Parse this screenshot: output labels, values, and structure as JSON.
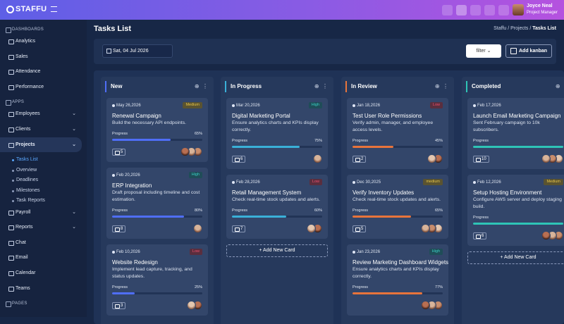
{
  "header": {
    "logo": "STAFFU",
    "user_name": "Joyce Neal",
    "user_role": "Project Manager"
  },
  "sidebar": {
    "sections": [
      {
        "title": "DASHBOARDS",
        "items": [
          {
            "label": "Analytics"
          },
          {
            "label": "Sales"
          },
          {
            "label": "Attendance"
          },
          {
            "label": "Performance"
          }
        ]
      },
      {
        "title": "APPS",
        "items": [
          {
            "label": "Employees",
            "expandable": true
          },
          {
            "label": "Clients",
            "expandable": true
          },
          {
            "label": "Projects",
            "expandable": true,
            "active": true,
            "children": [
              "Tasks List",
              "Overview",
              "Deadlines",
              "Milestones",
              "Task Reports"
            ]
          },
          {
            "label": "Payroll",
            "expandable": true
          },
          {
            "label": "Reports",
            "expandable": true
          },
          {
            "label": "Chat"
          },
          {
            "label": "Email"
          },
          {
            "label": "Calendar"
          },
          {
            "label": "Teams"
          }
        ]
      },
      {
        "title": "PAGES",
        "items": []
      }
    ]
  },
  "page": {
    "title": "Tasks List",
    "breadcrumb": [
      "Staffu",
      "Projects",
      "Tasks List"
    ]
  },
  "toolbar": {
    "date": "Sat, 04 Jul 2026",
    "filter": "filter",
    "add": "Add kanban"
  },
  "board": {
    "columns": [
      {
        "name": "New",
        "color": "#4f6ef7",
        "cards": [
          {
            "date": "May 26,2026",
            "priority": "Medium",
            "title": "Renewal Campaign",
            "description": "Build the necessary API endpoints.",
            "progress_text": "Progress",
            "progress": 65,
            "progress_label": "65%",
            "comments": 5
          },
          {
            "date": "Feb 20,2026",
            "priority": "High",
            "title": "ERP Integration",
            "description": "Draft proposal including timeline and cost estimation.",
            "progress_text": "Progress",
            "progress": 80,
            "progress_label": "80%",
            "comments": 8
          },
          {
            "date": "Feb 10,2026",
            "priority": "Low",
            "title": "Website Redesign",
            "description": "Implement lead capture, tracking, and status updates.",
            "progress_text": "Progress",
            "progress": 25,
            "progress_label": "25%",
            "comments": 3
          }
        ]
      },
      {
        "name": "In Progress",
        "color": "#3ab0d8",
        "add_card": "+ Add New Card",
        "cards": [
          {
            "date": "Mar 20,2026",
            "priority": "High",
            "title": "Digital Marketing Portal",
            "description": "Ensure analytics charts and KPIs display correctly.",
            "progress_text": "Progress",
            "progress": 75,
            "progress_label": "75%",
            "comments": 6
          },
          {
            "date": "Feb 28,2026",
            "priority": "Low",
            "title": "Retail Management System",
            "description": "Check real-time stock updates and alerts.",
            "progress_text": "Progress",
            "progress": 60,
            "progress_label": "60%",
            "comments": 7
          }
        ]
      },
      {
        "name": "In Review",
        "color": "#e8743b",
        "cards": [
          {
            "date": "Jan 18,2026",
            "priority": "Low",
            "title": "Test User Role Permissions",
            "description": "Verify admin, manager, and employee access levels.",
            "progress_text": "Progress",
            "progress": 45,
            "progress_label": "45%",
            "comments": 2
          },
          {
            "date": "Dec 30,2025",
            "priority": "medium",
            "title": "Verify Inventory Updates",
            "description": "Check real-time stock updates and alerts.",
            "progress_text": "Progress",
            "progress": 65,
            "progress_label": "65%",
            "comments": 5
          },
          {
            "date": "Jan 23,2026",
            "priority": "High",
            "title": "Review Marketing Dashboard Widgets",
            "description": "Ensure analytics charts and KPIs display correctly.",
            "progress_text": "Progress",
            "progress": 77,
            "progress_label": "77%"
          }
        ]
      },
      {
        "name": "Completed",
        "color": "#2ec4b6",
        "add_card": "+ Add New Card",
        "cards": [
          {
            "date": "Feb 17,2026",
            "title": "Launch Email Marketing Campaign",
            "description": "Sent February campaign to 10k subscribers.",
            "progress_text": "Progress",
            "progress": 100,
            "comments": 10
          },
          {
            "date": "Feb 12,2026",
            "priority": "Medium",
            "title": "Setup Hosting Environment",
            "description": "Configure AWS server and deploy staging build.",
            "progress_text": "Progress",
            "progress": 100,
            "comments": 6
          }
        ]
      }
    ]
  }
}
